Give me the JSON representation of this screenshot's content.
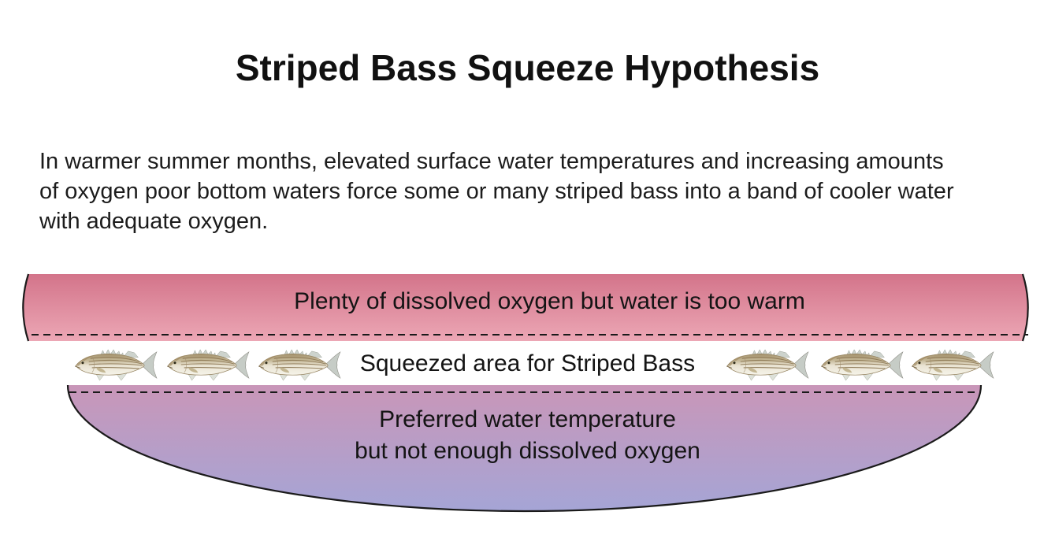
{
  "page": {
    "title": "Striped Bass Squeeze Hypothesis",
    "intro_lines": [
      "In warmer summer months, elevated surface water temperatures and increasing amounts",
      "of oxygen poor bottom waters force some or many striped bass into a band of cooler water",
      "with adequate oxygen."
    ]
  },
  "diagram": {
    "surface_layer": {
      "label": "Plenty of dissolved oxygen but water is too warm",
      "color_top": "#d3748a",
      "color_bottom": "#eca7b5"
    },
    "squeeze_layer": {
      "label": "Squeezed area for Striped Bass",
      "fish_icon": "striped-bass-icon",
      "fish_count": 6
    },
    "bottom_layer": {
      "label_line1": "Preferred water temperature",
      "label_line2": "but not enough dissolved oxygen",
      "color_top": "#c996b8",
      "color_bottom": "#a5a5d6"
    },
    "outline_color": "#1a1a1a"
  }
}
